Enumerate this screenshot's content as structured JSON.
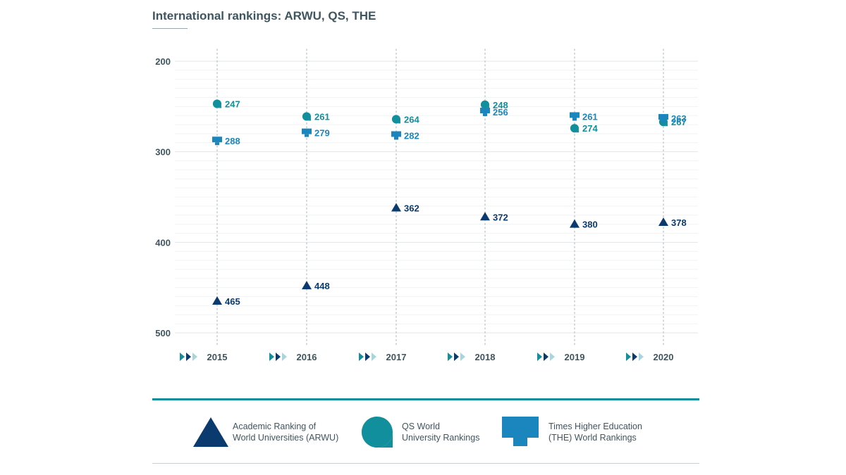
{
  "title": "International rankings: ARWU, QS, THE",
  "colors": {
    "arwu": "#0b3a6f",
    "qs": "#128f9c",
    "the": "#1b86bd",
    "axis_text": "#3f5560",
    "legend_rule": "#0f8f9b"
  },
  "chart_data": {
    "type": "scatter",
    "title": "International rankings: ARWU, QS, THE",
    "x": [
      "2015",
      "2016",
      "2017",
      "2018",
      "2019",
      "2020"
    ],
    "ylim": [
      200,
      500
    ],
    "y_reversed": true,
    "yticks": [
      "200",
      "300",
      "400",
      "500"
    ],
    "xlabel": "",
    "ylabel": "",
    "grid": true,
    "series": [
      {
        "key": "arwu",
        "name": "Academic Ranking of World Universities (ARWU)",
        "marker": "triangle-icon",
        "values": [
          465,
          448,
          362,
          372,
          380,
          378
        ]
      },
      {
        "key": "qs",
        "name": "QS World University Rankings",
        "marker": "speech-bubble-icon",
        "values": [
          247,
          261,
          264,
          248,
          274,
          267
        ]
      },
      {
        "key": "the",
        "name": "Times Higher Education (THE) World Rankings",
        "marker": "monitor-icon",
        "values": [
          288,
          279,
          282,
          256,
          261,
          263
        ]
      }
    ]
  },
  "legend": {
    "arwu": {
      "label": "Academic Ranking of\nWorld Universities (ARWU)",
      "icon": "triangle-icon"
    },
    "qs": {
      "label": "QS World\nUniversity Rankings",
      "icon": "speech-bubble-icon"
    },
    "the": {
      "label": "Times Higher Education\n(THE) World Rankings",
      "icon": "monitor-icon"
    }
  }
}
